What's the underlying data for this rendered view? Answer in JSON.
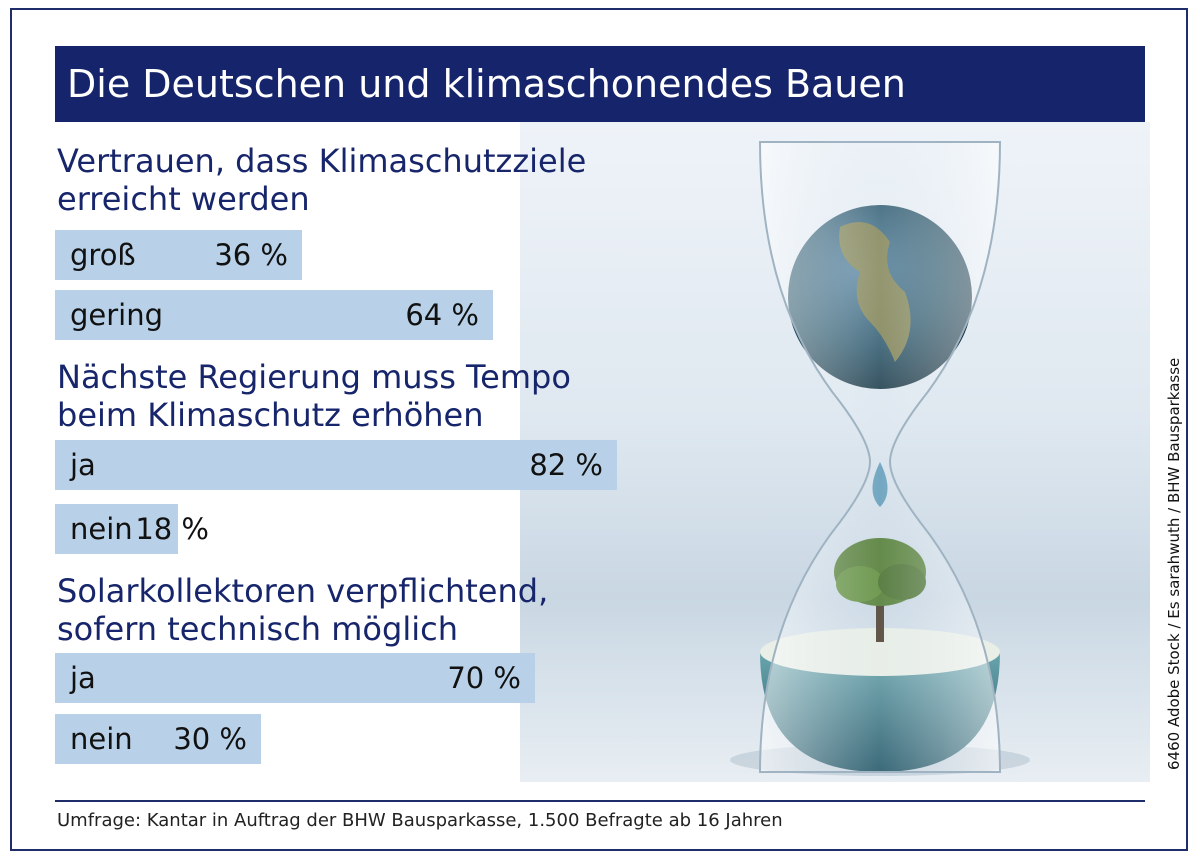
{
  "title": "Die Deutschen und klimaschonendes Bauen",
  "footnote": "Umfrage: Kantar in Auftrag der BHW Bausparkasse, 1.500 Befragte ab 16 Jahren",
  "credit": "6460 Adobe Stock / Es sarahwuth / BHW Bausparkasse",
  "colors": {
    "title_bg": "#16256b",
    "bar": "#b8d1e8",
    "question_text": "#17256b"
  },
  "chart_data": {
    "type": "bar",
    "orientation": "horizontal",
    "unit": "%",
    "groups": [
      {
        "question": [
          "Vertrauen, dass Klimaschutzziele",
          "erreicht werden"
        ],
        "items": [
          {
            "label": "groß",
            "value": 36,
            "display": "36 %"
          },
          {
            "label": "gering",
            "value": 64,
            "display": "64 %"
          }
        ]
      },
      {
        "question": [
          "Nächste Regierung muss Tempo",
          "beim Klimaschutz erhöhen"
        ],
        "items": [
          {
            "label": "ja",
            "value": 82,
            "display": "82 %"
          },
          {
            "label": "nein",
            "value": 18,
            "display": "18 %"
          }
        ]
      },
      {
        "question": [
          "Solarkollektoren verpflichtend,",
          "sofern technisch möglich"
        ],
        "items": [
          {
            "label": "ja",
            "value": 70,
            "display": "70 %"
          },
          {
            "label": "nein",
            "value": 30,
            "display": "30 %"
          }
        ]
      }
    ]
  }
}
